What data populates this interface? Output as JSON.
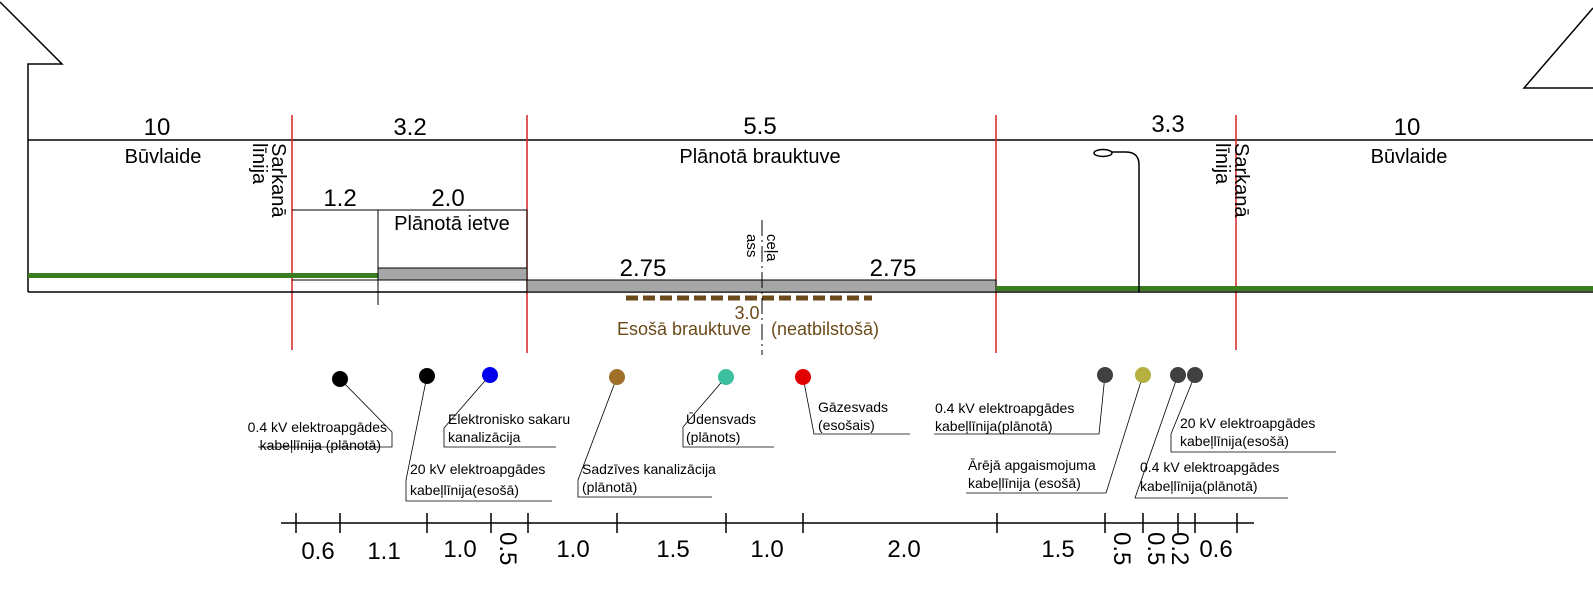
{
  "top_dimensions": {
    "building_left": "10",
    "sidewalk_zone": "3.2",
    "carriageway": "5.5",
    "right_zone": "3.3",
    "building_right": "10",
    "green_strip": "1.2",
    "sidewalk": "2.0",
    "lane_left": "2.75",
    "lane_right": "2.75",
    "existing_width": "3.0"
  },
  "labels": {
    "building_line_left": "Būvlaide",
    "building_line_right": "Būvlaide",
    "red_line_left_1": "Sarkanā",
    "red_line_left_2": "līnija",
    "red_line_right_1": "Sarkanā",
    "red_line_right_2": "līnija",
    "planned_carriageway": "Plānotā brauktuve",
    "planned_sidewalk": "Plānotā ietve",
    "road_axis_1": "ceļa",
    "road_axis_2": "ass",
    "existing_carriageway": "Esošā brauktuve",
    "not_compliant": "(neatbilstošā)"
  },
  "utilities": [
    {
      "line1": "0.4 kV elektroapgādes",
      "line2": "kabeļlīnija (plānotā)",
      "color": "#000000"
    },
    {
      "line1": "20 kV elektroapgādes",
      "line2": "kabeļlīnija(esošā)",
      "color": "#000000"
    },
    {
      "line1": "Elektronisko sakaru",
      "line2": "kanalizācija",
      "color": "#0000ee"
    },
    {
      "line1": "Sadzīves kanalizācija",
      "line2": "(plānotā)",
      "color": "#a0702a"
    },
    {
      "line1": "Ūdensvads",
      "line2": "(plānots)",
      "color": "#3cbf9e"
    },
    {
      "line1": "Gāzesvads",
      "line2": "(esošais)",
      "color": "#e00000"
    },
    {
      "line1": "0.4 kV elektroapgādes",
      "line2": "kabeļlīnija(plānotā)",
      "color": "#404040"
    },
    {
      "line1": "Ārējā apgaismojuma",
      "line2": "kabeļlīnija (esošā)",
      "color": "#b5b040"
    },
    {
      "line1": "0.4 kV elektroapgādes",
      "line2": "kabeļlīnija(plānotā)",
      "color": "#404040"
    },
    {
      "line1": "20 kV elektroapgādes",
      "line2": "kabeļlīnija(esošā)",
      "color": "#404040"
    }
  ],
  "bottom_scale": [
    "0.6",
    "1.1",
    "1.0",
    "0.5",
    "1.0",
    "1.5",
    "1.0",
    "2.0",
    "1.5",
    "0.5",
    "0.5",
    "0.2",
    "0.6"
  ],
  "colors": {
    "red_line": "#d62020",
    "green": "#3a7d1e",
    "asphalt": "#a6a6a6",
    "existing": "#6b4a1a"
  }
}
